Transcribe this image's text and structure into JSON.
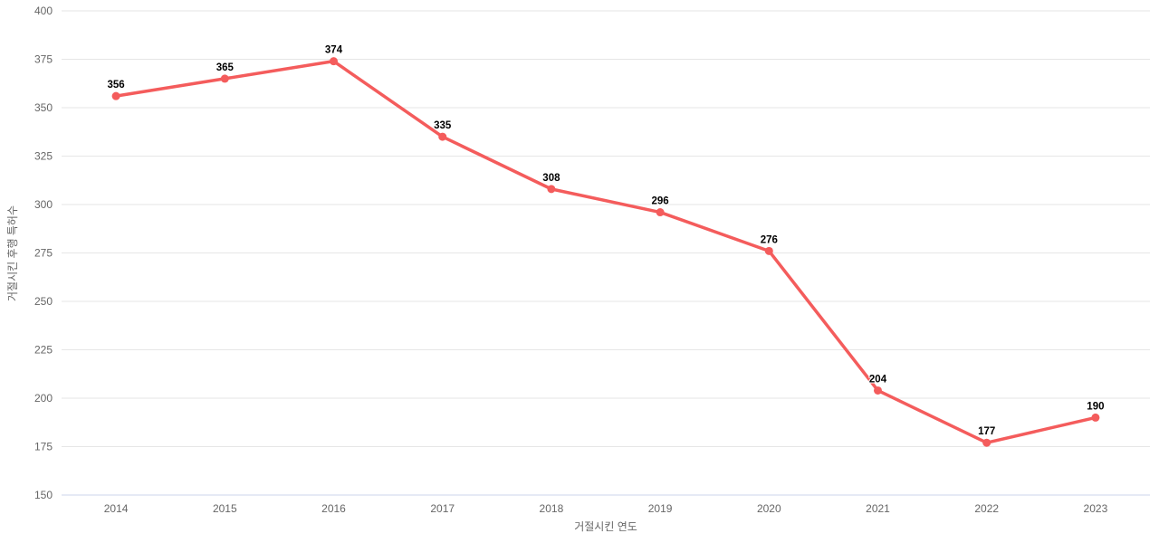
{
  "chart_data": {
    "type": "line",
    "categories": [
      "2014",
      "2015",
      "2016",
      "2017",
      "2018",
      "2019",
      "2020",
      "2021",
      "2022",
      "2023"
    ],
    "values": [
      356,
      365,
      374,
      335,
      308,
      296,
      276,
      204,
      177,
      190
    ],
    "data_labels": [
      "356",
      "365",
      "374",
      "335",
      "308",
      "296",
      "276",
      "204",
      "177",
      "190"
    ],
    "title": "",
    "xlabel": "거절시킨 연도",
    "ylabel": "거절시킨 후행 특허수",
    "ylim": [
      150,
      400
    ],
    "ytick_step": 25,
    "ytick_labels": [
      "150",
      "175",
      "200",
      "225",
      "250",
      "275",
      "300",
      "325",
      "350",
      "375",
      "400"
    ],
    "grid": true,
    "legend": "none",
    "colors": {
      "line": "#f45c5c",
      "marker": "#f45c5c",
      "gridline": "#e6e6e6",
      "axis_line": "#ccd6eb",
      "tick_label": "#666666",
      "axis_title": "#666666",
      "data_label": "#000000",
      "background": "#ffffff"
    }
  }
}
